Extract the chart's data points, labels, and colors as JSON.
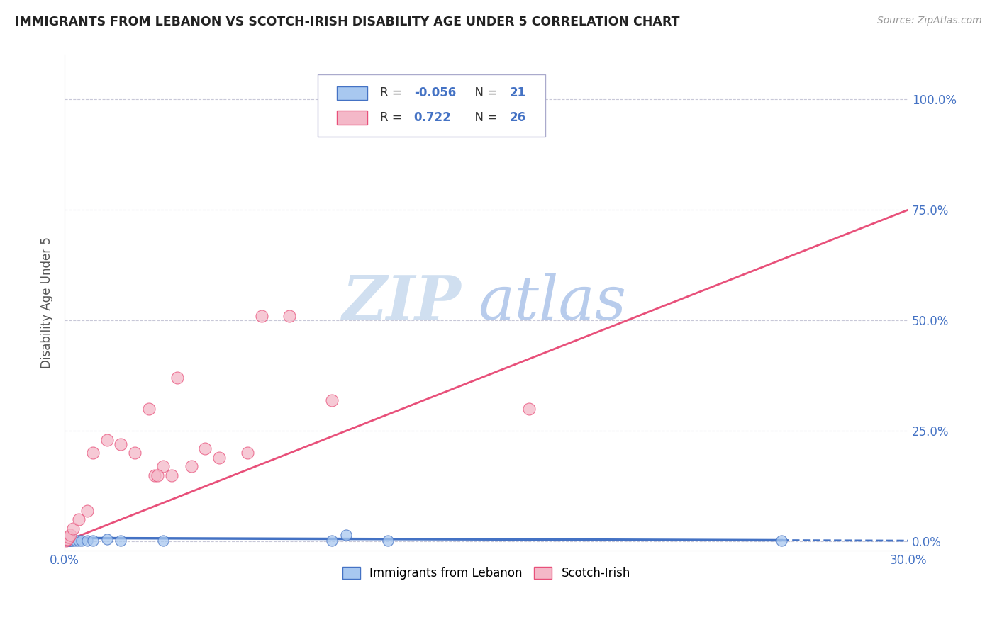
{
  "title": "IMMIGRANTS FROM LEBANON VS SCOTCH-IRISH DISABILITY AGE UNDER 5 CORRELATION CHART",
  "source": "Source: ZipAtlas.com",
  "ylabel_label": "Disability Age Under 5",
  "ylabel_ticks": [
    "0.0%",
    "25.0%",
    "50.0%",
    "75.0%",
    "100.0%"
  ],
  "ylabel_vals": [
    0,
    25,
    50,
    75,
    100
  ],
  "xlim": [
    0,
    30
  ],
  "ylim": [
    -2,
    110
  ],
  "color_blue": "#a8c8f0",
  "color_pink": "#f4b8c8",
  "color_line_blue": "#4472c4",
  "color_line_pink": "#e8507a",
  "color_title": "#222222",
  "color_axis_label": "#4472c4",
  "color_watermark": "#d0dff0",
  "color_grid": "#c8c8d8",
  "blue_x": [
    0.05,
    0.08,
    0.1,
    0.12,
    0.15,
    0.18,
    0.2,
    0.25,
    0.3,
    0.4,
    0.5,
    0.6,
    0.8,
    1.0,
    1.5,
    2.0,
    3.5,
    9.5,
    10.0,
    11.5,
    25.5
  ],
  "blue_y": [
    0.2,
    0.2,
    0.2,
    0.2,
    0.2,
    0.2,
    0.2,
    0.2,
    0.2,
    0.2,
    0.2,
    0.2,
    0.2,
    0.2,
    0.5,
    0.2,
    0.2,
    0.2,
    1.5,
    0.2,
    0.2
  ],
  "pink_x": [
    0.05,
    0.08,
    0.1,
    0.15,
    0.2,
    0.3,
    0.5,
    0.8,
    1.0,
    1.5,
    2.0,
    2.5,
    3.0,
    3.5,
    4.5,
    5.5,
    6.5,
    7.0,
    8.0,
    9.5,
    16.5,
    4.0,
    3.2,
    3.8,
    5.0,
    3.3
  ],
  "pink_y": [
    0.2,
    0.5,
    0.5,
    1.0,
    1.5,
    3.0,
    5.0,
    7.0,
    20.0,
    23.0,
    22.0,
    20.0,
    30.0,
    17.0,
    17.0,
    19.0,
    20.0,
    51.0,
    51.0,
    32.0,
    30.0,
    37.0,
    15.0,
    15.0,
    21.0,
    15.0
  ],
  "pink_line_x0": 0.0,
  "pink_line_y0": 0.0,
  "pink_line_x1": 30.0,
  "pink_line_y1": 75.0,
  "blue_line_x0": 0.0,
  "blue_line_y0": 0.8,
  "blue_line_x1": 25.5,
  "blue_line_y1": 0.3,
  "blue_dash_x0": 25.5,
  "blue_dash_y0": 0.3,
  "blue_dash_x1": 30.0,
  "blue_dash_y1": 0.2
}
